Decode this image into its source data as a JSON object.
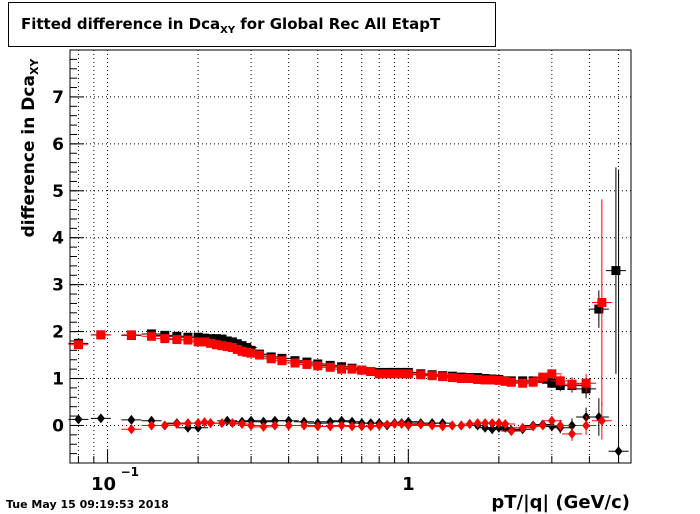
{
  "chart_data": {
    "type": "scatter",
    "title_main": "Fitted difference in Dca",
    "title_sub": "XY",
    "title_rest": " for Global Rec All EtapT",
    "ylabel_main": "difference in Dca",
    "ylabel_sub": "XY",
    "xlabel": "pT/|q| (GeV/c)",
    "timestamp": "Tue May 15 09:19:53 2018",
    "x_scale": "log",
    "xlim": [
      0.075,
      5.5
    ],
    "ylim": [
      -0.8,
      8.0
    ],
    "y_ticks": [
      "0",
      "1",
      "2",
      "3",
      "4",
      "5",
      "6",
      "7"
    ],
    "x_tick_labels": {
      "tenth_base": "10",
      "tenth_exp": "−1",
      "one": "1"
    },
    "grid": true,
    "colors": {
      "black": "#000000",
      "red": "#ff0000"
    },
    "series": [
      {
        "marker": "square",
        "color": "#000000",
        "x": [
          0.08,
          0.095,
          0.12,
          0.14,
          0.155,
          0.17,
          0.185,
          0.2,
          0.21,
          0.22,
          0.23,
          0.24,
          0.25,
          0.26,
          0.27,
          0.28,
          0.29,
          0.3,
          0.32,
          0.35,
          0.38,
          0.42,
          0.46,
          0.5,
          0.55,
          0.6,
          0.65,
          0.7,
          0.75,
          0.8,
          0.85,
          0.9,
          0.95,
          1.0,
          1.1,
          1.2,
          1.3,
          1.4,
          1.5,
          1.6,
          1.7,
          1.8,
          1.9,
          2.0,
          2.1,
          2.2,
          2.4,
          2.6,
          2.8,
          3.0,
          3.2,
          3.5,
          3.9,
          4.3,
          4.9
        ],
        "y": [
          1.75,
          1.93,
          1.92,
          1.95,
          1.92,
          1.9,
          1.88,
          1.88,
          1.86,
          1.85,
          1.85,
          1.84,
          1.8,
          1.78,
          1.74,
          1.7,
          1.66,
          1.6,
          1.52,
          1.46,
          1.43,
          1.38,
          1.35,
          1.31,
          1.28,
          1.25,
          1.22,
          1.18,
          1.15,
          1.13,
          1.13,
          1.13,
          1.13,
          1.13,
          1.1,
          1.08,
          1.06,
          1.05,
          1.03,
          1.02,
          1.02,
          1.0,
          0.99,
          0.98,
          0.95,
          0.95,
          0.95,
          0.95,
          1.0,
          0.9,
          0.85,
          0.85,
          0.78,
          2.48,
          3.3
        ],
        "yerr": [
          0.04,
          0.03,
          0.02,
          0.02,
          0.02,
          0.02,
          0.02,
          0.02,
          0.02,
          0.02,
          0.02,
          0.02,
          0.02,
          0.02,
          0.02,
          0.02,
          0.02,
          0.02,
          0.02,
          0.02,
          0.02,
          0.02,
          0.02,
          0.02,
          0.02,
          0.02,
          0.02,
          0.02,
          0.02,
          0.02,
          0.02,
          0.02,
          0.02,
          0.02,
          0.02,
          0.02,
          0.02,
          0.02,
          0.02,
          0.03,
          0.03,
          0.03,
          0.03,
          0.03,
          0.04,
          0.04,
          0.05,
          0.06,
          0.08,
          0.1,
          0.12,
          0.15,
          0.2,
          0.4,
          2.2
        ]
      },
      {
        "marker": "square",
        "color": "#ff0000",
        "x": [
          0.08,
          0.095,
          0.12,
          0.14,
          0.155,
          0.17,
          0.185,
          0.2,
          0.21,
          0.22,
          0.23,
          0.24,
          0.25,
          0.26,
          0.27,
          0.28,
          0.29,
          0.3,
          0.32,
          0.35,
          0.38,
          0.42,
          0.46,
          0.5,
          0.55,
          0.6,
          0.65,
          0.7,
          0.75,
          0.8,
          0.85,
          0.9,
          0.95,
          1.0,
          1.1,
          1.2,
          1.3,
          1.4,
          1.5,
          1.6,
          1.7,
          1.8,
          1.9,
          2.0,
          2.1,
          2.2,
          2.4,
          2.6,
          2.8,
          3.0,
          3.2,
          3.5,
          3.9,
          4.4
        ],
        "y": [
          1.72,
          1.93,
          1.93,
          1.9,
          1.85,
          1.83,
          1.82,
          1.78,
          1.78,
          1.75,
          1.72,
          1.7,
          1.68,
          1.66,
          1.62,
          1.58,
          1.56,
          1.54,
          1.5,
          1.42,
          1.38,
          1.33,
          1.3,
          1.27,
          1.24,
          1.2,
          1.2,
          1.18,
          1.15,
          1.1,
          1.1,
          1.1,
          1.1,
          1.1,
          1.08,
          1.06,
          1.04,
          1.02,
          1.0,
          1.0,
          0.98,
          0.97,
          0.97,
          0.96,
          0.94,
          0.92,
          0.9,
          0.92,
          1.03,
          1.1,
          0.95,
          0.88,
          0.9,
          2.62
        ],
        "yerr": [
          0.04,
          0.03,
          0.02,
          0.02,
          0.02,
          0.02,
          0.02,
          0.02,
          0.02,
          0.02,
          0.02,
          0.02,
          0.02,
          0.02,
          0.02,
          0.02,
          0.02,
          0.02,
          0.02,
          0.02,
          0.02,
          0.02,
          0.02,
          0.02,
          0.02,
          0.02,
          0.02,
          0.02,
          0.02,
          0.02,
          0.02,
          0.02,
          0.02,
          0.02,
          0.02,
          0.02,
          0.02,
          0.02,
          0.02,
          0.03,
          0.03,
          0.03,
          0.03,
          0.03,
          0.04,
          0.04,
          0.05,
          0.06,
          0.08,
          0.1,
          0.12,
          0.15,
          0.2,
          2.2
        ]
      },
      {
        "marker": "diamond",
        "color": "#000000",
        "x": [
          0.08,
          0.095,
          0.12,
          0.14,
          0.155,
          0.17,
          0.185,
          0.2,
          0.22,
          0.25,
          0.28,
          0.3,
          0.33,
          0.36,
          0.4,
          0.45,
          0.5,
          0.55,
          0.6,
          0.65,
          0.7,
          0.75,
          0.8,
          0.85,
          0.9,
          0.95,
          1.0,
          1.1,
          1.2,
          1.3,
          1.4,
          1.5,
          1.6,
          1.7,
          1.8,
          1.9,
          2.0,
          2.1,
          2.2,
          2.4,
          2.6,
          2.8,
          3.0,
          3.2,
          3.5,
          3.9,
          4.3,
          5.0
        ],
        "y": [
          0.13,
          0.15,
          0.12,
          0.1,
          0.0,
          0.05,
          -0.05,
          -0.05,
          0.05,
          0.1,
          0.08,
          0.1,
          0.08,
          0.1,
          0.1,
          0.08,
          0.05,
          0.08,
          0.1,
          0.08,
          0.05,
          0.05,
          0.05,
          0.0,
          0.05,
          0.05,
          0.08,
          0.05,
          0.05,
          0.05,
          0.0,
          0.0,
          0.03,
          0.0,
          -0.05,
          -0.08,
          -0.05,
          -0.05,
          -0.1,
          -0.08,
          0.0,
          0.02,
          -0.02,
          -0.05,
          0.0,
          0.18,
          0.18,
          -0.55
        ],
        "yerr": [
          0.04,
          0.03,
          0.02,
          0.02,
          0.02,
          0.02,
          0.02,
          0.02,
          0.02,
          0.02,
          0.02,
          0.02,
          0.02,
          0.02,
          0.02,
          0.02,
          0.02,
          0.02,
          0.02,
          0.02,
          0.02,
          0.02,
          0.02,
          0.02,
          0.02,
          0.02,
          0.02,
          0.02,
          0.02,
          0.02,
          0.03,
          0.03,
          0.03,
          0.03,
          0.03,
          0.04,
          0.04,
          0.05,
          0.05,
          0.06,
          0.07,
          0.08,
          0.1,
          0.12,
          0.15,
          0.2,
          0.4,
          6.0
        ]
      },
      {
        "marker": "diamond",
        "color": "#ff0000",
        "x": [
          0.12,
          0.14,
          0.155,
          0.17,
          0.185,
          0.2,
          0.21,
          0.22,
          0.24,
          0.26,
          0.28,
          0.3,
          0.33,
          0.36,
          0.4,
          0.45,
          0.5,
          0.55,
          0.6,
          0.65,
          0.7,
          0.75,
          0.8,
          0.85,
          0.9,
          0.95,
          1.0,
          1.1,
          1.2,
          1.3,
          1.4,
          1.5,
          1.6,
          1.7,
          1.8,
          1.9,
          2.0,
          2.1,
          2.2,
          2.4,
          2.6,
          2.8,
          3.0,
          3.2,
          3.5,
          3.9,
          4.4
        ],
        "y": [
          -0.08,
          0.0,
          0.0,
          0.03,
          0.05,
          0.05,
          0.07,
          0.05,
          0.05,
          0.05,
          0.03,
          0.0,
          -0.03,
          0.0,
          0.0,
          0.0,
          -0.02,
          -0.02,
          0.0,
          -0.02,
          -0.02,
          -0.02,
          0.0,
          0.02,
          0.03,
          0.03,
          0.0,
          0.02,
          0.0,
          -0.02,
          0.0,
          0.0,
          0.03,
          0.05,
          0.05,
          0.05,
          0.05,
          0.03,
          -0.12,
          -0.05,
          -0.02,
          0.0,
          0.1,
          0.0,
          -0.18,
          0.0,
          0.1
        ],
        "yerr": [
          0.02,
          0.02,
          0.02,
          0.02,
          0.02,
          0.02,
          0.02,
          0.02,
          0.02,
          0.02,
          0.02,
          0.02,
          0.02,
          0.02,
          0.02,
          0.02,
          0.02,
          0.02,
          0.02,
          0.02,
          0.02,
          0.02,
          0.02,
          0.02,
          0.02,
          0.02,
          0.02,
          0.02,
          0.02,
          0.02,
          0.03,
          0.03,
          0.03,
          0.03,
          0.03,
          0.04,
          0.04,
          0.05,
          0.05,
          0.06,
          0.07,
          0.08,
          0.1,
          0.12,
          0.15,
          0.2,
          0.4
        ]
      }
    ]
  }
}
